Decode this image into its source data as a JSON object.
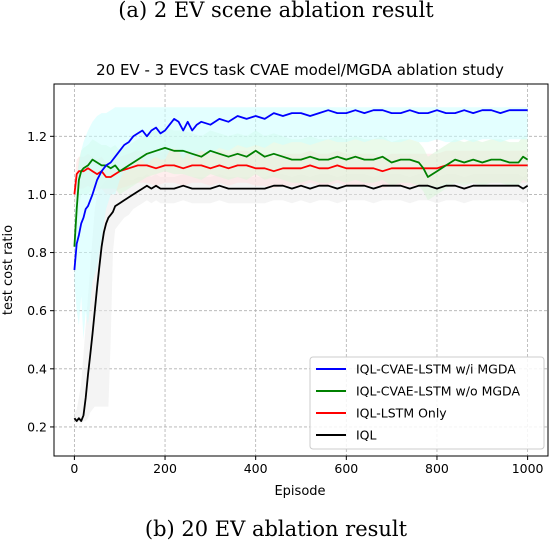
{
  "captions": {
    "top": "(a) 2 EV scene ablation result",
    "bottom": "(b) 20 EV ablation result"
  },
  "chart_data": {
    "type": "line",
    "title": "20 EV - 3 EVCS task CVAE model/MGDA  ablation study",
    "xlabel": "Episode",
    "ylabel": "test cost ratio",
    "xlim": [
      -45,
      1045
    ],
    "ylim": [
      0.1,
      1.38
    ],
    "xticks": [
      0,
      200,
      400,
      600,
      800,
      1000
    ],
    "yticks": [
      0.2,
      0.4,
      0.6,
      0.8,
      1.0,
      1.2
    ],
    "xtick_labels": [
      "0",
      "200",
      "400",
      "600",
      "800",
      "1000"
    ],
    "ytick_labels": [
      "0.2",
      "0.4",
      "0.6",
      "0.8",
      "1.0",
      "1.2"
    ],
    "grid": true,
    "legend_position": "lower-right",
    "series": [
      {
        "name": "IQL-CVAE-LSTM w/i MGDA",
        "color": "#0000ff",
        "band_color": "#ccffff",
        "x": [
          0,
          5,
          10,
          15,
          20,
          25,
          30,
          40,
          50,
          60,
          70,
          80,
          90,
          100,
          110,
          120,
          130,
          140,
          150,
          160,
          170,
          180,
          190,
          200,
          210,
          220,
          230,
          240,
          250,
          260,
          270,
          280,
          300,
          320,
          340,
          360,
          380,
          400,
          420,
          440,
          460,
          480,
          500,
          520,
          540,
          560,
          580,
          600,
          620,
          640,
          660,
          680,
          700,
          720,
          740,
          760,
          780,
          800,
          820,
          840,
          860,
          880,
          900,
          920,
          940,
          960,
          980,
          1000
        ],
        "y": [
          0.74,
          0.83,
          0.86,
          0.9,
          0.92,
          0.95,
          0.96,
          1.0,
          1.05,
          1.08,
          1.1,
          1.11,
          1.13,
          1.15,
          1.17,
          1.18,
          1.2,
          1.21,
          1.22,
          1.2,
          1.22,
          1.23,
          1.21,
          1.22,
          1.24,
          1.26,
          1.25,
          1.22,
          1.25,
          1.22,
          1.24,
          1.25,
          1.24,
          1.26,
          1.25,
          1.27,
          1.26,
          1.27,
          1.26,
          1.28,
          1.27,
          1.28,
          1.28,
          1.27,
          1.28,
          1.29,
          1.28,
          1.28,
          1.29,
          1.28,
          1.29,
          1.29,
          1.28,
          1.28,
          1.29,
          1.28,
          1.28,
          1.29,
          1.28,
          1.28,
          1.29,
          1.28,
          1.29,
          1.29,
          1.28,
          1.29,
          1.29,
          1.29
        ],
        "band_low": [
          0.7,
          0.6,
          0.55,
          0.65,
          0.5,
          0.6,
          0.55,
          0.7,
          0.75,
          0.85,
          0.95,
          1.0,
          1.0,
          1.05,
          1.08,
          1.08,
          1.1,
          1.12,
          1.12,
          1.1,
          1.12,
          1.13,
          1.12,
          1.12,
          1.15,
          1.16,
          1.15,
          1.12,
          1.15,
          1.12,
          1.14,
          1.15,
          1.14,
          1.16,
          1.15,
          1.17,
          1.16,
          1.17,
          1.16,
          1.18,
          1.17,
          1.18,
          1.18,
          1.17,
          1.18,
          1.19,
          1.18,
          1.18,
          1.19,
          1.18,
          1.19,
          1.19,
          1.18,
          1.18,
          1.19,
          1.18,
          1.18,
          1.19,
          1.18,
          1.18,
          1.19,
          1.18,
          1.19,
          1.19,
          1.18,
          1.19,
          1.19,
          1.19
        ],
        "band_high": [
          0.9,
          1.05,
          1.1,
          1.15,
          1.18,
          1.2,
          1.22,
          1.25,
          1.27,
          1.28,
          1.28,
          1.29,
          1.3,
          1.3,
          1.3,
          1.3,
          1.3,
          1.3,
          1.3,
          1.3,
          1.3,
          1.3,
          1.3,
          1.3,
          1.3,
          1.3,
          1.3,
          1.3,
          1.3,
          1.3,
          1.3,
          1.3,
          1.3,
          1.3,
          1.3,
          1.3,
          1.3,
          1.3,
          1.3,
          1.3,
          1.3,
          1.3,
          1.3,
          1.3,
          1.3,
          1.3,
          1.3,
          1.3,
          1.3,
          1.3,
          1.3,
          1.3,
          1.3,
          1.3,
          1.3,
          1.3,
          1.3,
          1.3,
          1.3,
          1.3,
          1.3,
          1.3,
          1.3,
          1.3,
          1.3,
          1.3,
          1.3,
          1.3
        ]
      },
      {
        "name": "IQL-CVAE-LSTM w/o MGDA",
        "color": "#008000",
        "band_color": "#d9f5d9",
        "x": [
          0,
          5,
          10,
          15,
          20,
          30,
          40,
          50,
          60,
          70,
          80,
          90,
          100,
          120,
          140,
          160,
          180,
          200,
          220,
          240,
          260,
          280,
          300,
          320,
          340,
          360,
          380,
          400,
          420,
          440,
          460,
          480,
          500,
          520,
          540,
          560,
          580,
          600,
          620,
          640,
          660,
          680,
          700,
          720,
          740,
          760,
          770,
          780,
          800,
          820,
          840,
          860,
          880,
          900,
          920,
          940,
          960,
          980,
          990,
          1000
        ],
        "y": [
          0.82,
          0.95,
          1.05,
          1.08,
          1.09,
          1.1,
          1.12,
          1.11,
          1.1,
          1.1,
          1.09,
          1.1,
          1.08,
          1.1,
          1.12,
          1.14,
          1.15,
          1.16,
          1.15,
          1.15,
          1.14,
          1.13,
          1.15,
          1.14,
          1.13,
          1.14,
          1.13,
          1.15,
          1.13,
          1.14,
          1.13,
          1.12,
          1.12,
          1.13,
          1.12,
          1.12,
          1.13,
          1.12,
          1.13,
          1.12,
          1.12,
          1.13,
          1.11,
          1.12,
          1.12,
          1.11,
          1.09,
          1.06,
          1.08,
          1.1,
          1.12,
          1.11,
          1.12,
          1.11,
          1.12,
          1.12,
          1.11,
          1.11,
          1.13,
          1.12
        ],
        "band_low": [
          0.8,
          0.85,
          0.95,
          1.0,
          1.0,
          1.0,
          1.02,
          1.02,
          1.02,
          1.02,
          1.02,
          1.02,
          1.0,
          1.02,
          1.04,
          1.06,
          1.07,
          1.08,
          1.07,
          1.07,
          1.06,
          1.05,
          1.07,
          1.06,
          1.05,
          1.06,
          1.05,
          1.07,
          1.05,
          1.06,
          1.05,
          1.04,
          1.04,
          1.05,
          1.04,
          1.04,
          1.05,
          1.04,
          1.05,
          1.04,
          1.04,
          1.05,
          1.03,
          1.04,
          1.04,
          1.03,
          1.01,
          0.98,
          1.0,
          1.02,
          1.04,
          1.03,
          1.04,
          1.03,
          1.04,
          1.04,
          1.03,
          1.03,
          1.05,
          1.04
        ],
        "band_high": [
          0.9,
          1.05,
          1.12,
          1.15,
          1.16,
          1.17,
          1.19,
          1.18,
          1.17,
          1.17,
          1.16,
          1.17,
          1.15,
          1.17,
          1.19,
          1.21,
          1.22,
          1.23,
          1.22,
          1.22,
          1.21,
          1.2,
          1.22,
          1.21,
          1.2,
          1.21,
          1.2,
          1.22,
          1.2,
          1.21,
          1.2,
          1.19,
          1.19,
          1.2,
          1.19,
          1.19,
          1.2,
          1.19,
          1.2,
          1.19,
          1.19,
          1.2,
          1.18,
          1.19,
          1.19,
          1.18,
          1.16,
          1.13,
          1.15,
          1.17,
          1.19,
          1.18,
          1.19,
          1.18,
          1.19,
          1.19,
          1.18,
          1.18,
          1.2,
          1.19
        ]
      },
      {
        "name": "IQL-LSTM Only",
        "color": "#ff0000",
        "band_color": "#ffe0e0",
        "x": [
          0,
          5,
          10,
          20,
          30,
          40,
          50,
          60,
          70,
          80,
          90,
          100,
          120,
          140,
          160,
          180,
          200,
          220,
          240,
          260,
          280,
          300,
          320,
          340,
          360,
          380,
          400,
          420,
          440,
          460,
          480,
          500,
          520,
          540,
          560,
          580,
          600,
          620,
          640,
          660,
          680,
          700,
          720,
          740,
          760,
          780,
          800,
          820,
          840,
          860,
          880,
          900,
          920,
          940,
          960,
          980,
          1000
        ],
        "y": [
          1.0,
          1.07,
          1.08,
          1.08,
          1.09,
          1.08,
          1.07,
          1.08,
          1.06,
          1.06,
          1.07,
          1.08,
          1.09,
          1.1,
          1.1,
          1.09,
          1.1,
          1.1,
          1.09,
          1.1,
          1.1,
          1.09,
          1.1,
          1.09,
          1.1,
          1.1,
          1.09,
          1.09,
          1.08,
          1.09,
          1.09,
          1.09,
          1.1,
          1.09,
          1.09,
          1.1,
          1.09,
          1.09,
          1.09,
          1.09,
          1.08,
          1.09,
          1.09,
          1.09,
          1.09,
          1.09,
          1.09,
          1.1,
          1.1,
          1.1,
          1.1,
          1.1,
          1.1,
          1.1,
          1.1,
          1.1,
          1.1
        ],
        "band_low": [
          0.95,
          1.0,
          1.02,
          1.02,
          1.03,
          1.02,
          1.01,
          1.02,
          1.0,
          1.0,
          1.01,
          1.02,
          1.03,
          1.04,
          1.04,
          1.03,
          1.04,
          1.04,
          1.03,
          1.04,
          1.04,
          1.03,
          1.04,
          1.03,
          1.04,
          1.04,
          1.03,
          1.03,
          1.02,
          1.03,
          1.03,
          1.03,
          1.04,
          1.03,
          1.03,
          1.04,
          1.03,
          1.03,
          1.03,
          1.03,
          1.02,
          1.03,
          1.03,
          1.03,
          1.03,
          1.03,
          1.03,
          1.04,
          1.04,
          1.04,
          1.04,
          1.04,
          1.04,
          1.04,
          1.04,
          1.04,
          1.04
        ],
        "band_high": [
          1.05,
          1.12,
          1.13,
          1.13,
          1.14,
          1.13,
          1.12,
          1.13,
          1.11,
          1.11,
          1.12,
          1.13,
          1.14,
          1.15,
          1.15,
          1.14,
          1.15,
          1.15,
          1.14,
          1.15,
          1.15,
          1.14,
          1.15,
          1.14,
          1.15,
          1.15,
          1.14,
          1.14,
          1.13,
          1.14,
          1.14,
          1.14,
          1.15,
          1.14,
          1.14,
          1.15,
          1.14,
          1.14,
          1.14,
          1.14,
          1.13,
          1.14,
          1.14,
          1.14,
          1.14,
          1.14,
          1.14,
          1.15,
          1.15,
          1.15,
          1.15,
          1.15,
          1.15,
          1.15,
          1.15,
          1.15,
          1.15
        ]
      },
      {
        "name": "IQL",
        "color": "#000000",
        "band_color": "#ebebeb",
        "x": [
          0,
          5,
          10,
          15,
          20,
          25,
          30,
          35,
          40,
          45,
          50,
          55,
          60,
          65,
          70,
          75,
          80,
          85,
          90,
          100,
          110,
          120,
          130,
          140,
          150,
          160,
          170,
          180,
          190,
          200,
          220,
          240,
          260,
          280,
          300,
          320,
          340,
          360,
          380,
          400,
          420,
          440,
          460,
          480,
          500,
          520,
          540,
          560,
          580,
          600,
          620,
          640,
          660,
          680,
          700,
          720,
          740,
          760,
          780,
          800,
          820,
          840,
          860,
          880,
          900,
          920,
          940,
          960,
          980,
          990,
          1000
        ],
        "y": [
          0.23,
          0.22,
          0.23,
          0.22,
          0.24,
          0.3,
          0.38,
          0.45,
          0.52,
          0.6,
          0.68,
          0.75,
          0.82,
          0.87,
          0.9,
          0.92,
          0.93,
          0.94,
          0.96,
          0.97,
          0.98,
          0.99,
          1.0,
          1.01,
          1.02,
          1.03,
          1.02,
          1.03,
          1.02,
          1.02,
          1.02,
          1.03,
          1.02,
          1.02,
          1.02,
          1.03,
          1.02,
          1.02,
          1.02,
          1.02,
          1.02,
          1.03,
          1.03,
          1.02,
          1.03,
          1.02,
          1.03,
          1.03,
          1.02,
          1.03,
          1.03,
          1.03,
          1.02,
          1.03,
          1.03,
          1.03,
          1.02,
          1.03,
          1.03,
          1.02,
          1.03,
          1.03,
          1.02,
          1.03,
          1.03,
          1.03,
          1.03,
          1.03,
          1.03,
          1.02,
          1.03
        ],
        "band_low": [
          0.22,
          0.21,
          0.22,
          0.21,
          0.22,
          0.22,
          0.23,
          0.25,
          0.26,
          0.27,
          0.27,
          0.27,
          0.27,
          0.27,
          0.27,
          0.27,
          0.5,
          0.8,
          0.88,
          0.9,
          0.92,
          0.93,
          0.95,
          0.96,
          0.97,
          0.98,
          0.97,
          0.98,
          0.97,
          0.97,
          0.97,
          0.98,
          0.97,
          0.97,
          0.97,
          0.98,
          0.97,
          0.97,
          0.97,
          0.97,
          0.97,
          0.98,
          0.98,
          0.97,
          0.98,
          0.97,
          0.98,
          0.98,
          0.97,
          0.98,
          0.98,
          0.98,
          0.97,
          0.98,
          0.98,
          0.98,
          0.97,
          0.98,
          0.98,
          0.97,
          0.98,
          0.98,
          0.97,
          0.98,
          0.98,
          0.98,
          0.98,
          0.98,
          0.98,
          0.97,
          0.98
        ],
        "band_high": [
          0.25,
          0.26,
          0.3,
          0.35,
          0.45,
          0.55,
          0.65,
          0.75,
          0.85,
          0.95,
          1.0,
          1.02,
          1.03,
          1.04,
          1.05,
          1.05,
          1.05,
          1.05,
          1.05,
          1.05,
          1.05,
          1.05,
          1.05,
          1.06,
          1.06,
          1.07,
          1.06,
          1.07,
          1.06,
          1.06,
          1.06,
          1.07,
          1.06,
          1.06,
          1.06,
          1.07,
          1.06,
          1.06,
          1.06,
          1.06,
          1.06,
          1.07,
          1.07,
          1.06,
          1.07,
          1.06,
          1.07,
          1.07,
          1.06,
          1.07,
          1.07,
          1.07,
          1.06,
          1.07,
          1.07,
          1.07,
          1.06,
          1.07,
          1.07,
          1.06,
          1.07,
          1.07,
          1.06,
          1.07,
          1.07,
          1.07,
          1.07,
          1.07,
          1.07,
          1.06,
          1.07
        ]
      }
    ]
  }
}
